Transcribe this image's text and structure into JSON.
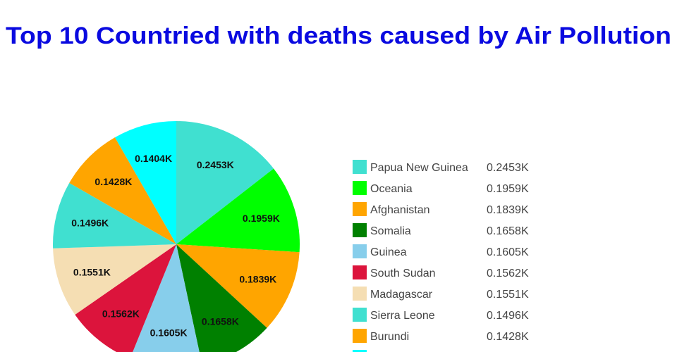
{
  "title": "Top 10 Countried with deaths caused by Air Pollution",
  "title_color": "#0a0ae0",
  "chart_data": {
    "type": "pie",
    "title": "Top 10 Countried with deaths caused by Air Pollution",
    "legend_position": "right",
    "slices": [
      {
        "label": "Papua New Guinea",
        "value": 245.3,
        "display": "0.2453K",
        "color": "#40E0D0"
      },
      {
        "label": "Oceania",
        "value": 195.9,
        "display": "0.1959K",
        "color": "#00FF00"
      },
      {
        "label": "Afghanistan",
        "value": 183.9,
        "display": "0.1839K",
        "color": "#FFA500"
      },
      {
        "label": "Somalia",
        "value": 165.8,
        "display": "0.1658K",
        "color": "#008000"
      },
      {
        "label": "Guinea",
        "value": 160.5,
        "display": "0.1605K",
        "color": "#87CEEB"
      },
      {
        "label": "South Sudan",
        "value": 156.2,
        "display": "0.1562K",
        "color": "#DC143C"
      },
      {
        "label": "Madagascar",
        "value": 155.1,
        "display": "0.1551K",
        "color": "#F5DEB3"
      },
      {
        "label": "Sierra Leone",
        "value": 149.6,
        "display": "0.1496K",
        "color": "#40E0D0"
      },
      {
        "label": "Burundi",
        "value": 142.8,
        "display": "0.1428K",
        "color": "#FFA500"
      },
      {
        "label": "",
        "value": 140.4,
        "display": "0.1404K",
        "color": "#00FFFF"
      }
    ]
  }
}
